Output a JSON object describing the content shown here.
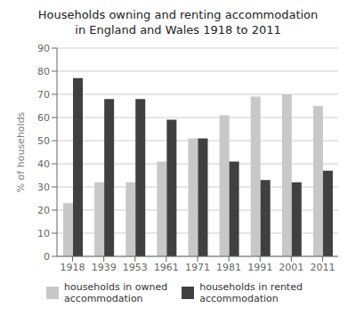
{
  "chart_data": {
    "type": "bar",
    "title": "Households owning and renting accommodation\nin England and Wales 1918 to 2011",
    "categories": [
      "1918",
      "1939",
      "1953",
      "1961",
      "1971",
      "1981",
      "1991",
      "2001",
      "2011"
    ],
    "series": [
      {
        "name": "households in owned\naccommodation",
        "color": "#c8c8c8",
        "values": [
          23,
          32,
          32,
          41,
          51,
          61,
          69,
          70,
          65
        ]
      },
      {
        "name": "households in rented\naccommodation",
        "color": "#404040",
        "values": [
          77,
          68,
          68,
          59,
          51,
          41,
          33,
          32,
          37
        ]
      }
    ],
    "y_label": "% of households",
    "ylim": [
      0,
      90
    ],
    "yticks": [
      0,
      10,
      20,
      30,
      40,
      50,
      60,
      70,
      80,
      90
    ],
    "grid": true,
    "legend": "bottom"
  }
}
